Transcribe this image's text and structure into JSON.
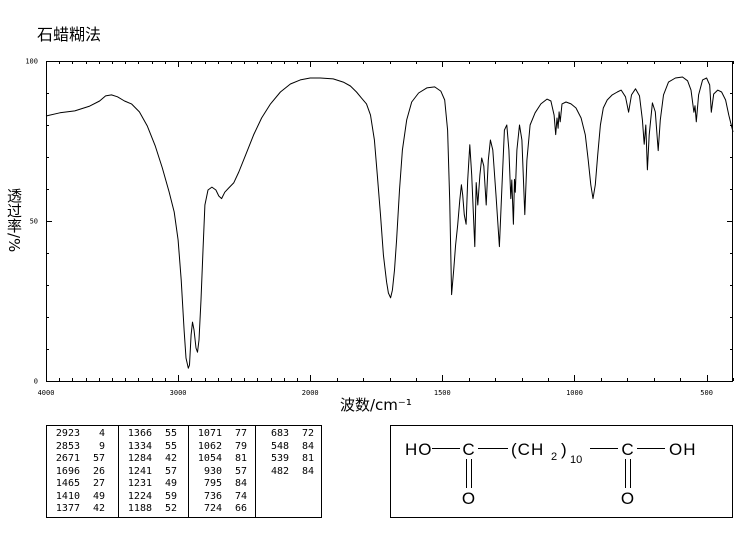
{
  "chart_data": {
    "type": "line",
    "title": "石蜡糊法",
    "xlabel": "波数/cm⁻¹",
    "ylabel": "透过率/%",
    "xlim": [
      4000,
      400
    ],
    "ylim": [
      0,
      100
    ],
    "x_break": 2000,
    "xticks": [
      4000,
      3000,
      2000,
      1500,
      1000,
      500
    ],
    "yticks": [
      100,
      50,
      0
    ],
    "grid": false,
    "series": [
      {
        "points": [
          [
            4000,
            82.8
          ],
          [
            3895,
            83.8
          ],
          [
            3782,
            84.4
          ],
          [
            3669,
            85.9
          ],
          [
            3594,
            87.5
          ],
          [
            3549,
            89.1
          ],
          [
            3504,
            89.4
          ],
          [
            3459,
            88.8
          ],
          [
            3406,
            87.5
          ],
          [
            3353,
            86.6
          ],
          [
            3293,
            84.1
          ],
          [
            3233,
            79.7
          ],
          [
            3173,
            73.4
          ],
          [
            3120,
            66.6
          ],
          [
            3068,
            59.1
          ],
          [
            3030,
            52.8
          ],
          [
            3000,
            44.1
          ],
          [
            2977,
            31.6
          ],
          [
            2955,
            15.9
          ],
          [
            2940,
            7.2
          ],
          [
            2923,
            4.0
          ],
          [
            2914,
            5.0
          ],
          [
            2902,
            14.4
          ],
          [
            2891,
            18.4
          ],
          [
            2880,
            16.0
          ],
          [
            2865,
            10.3
          ],
          [
            2853,
            9.0
          ],
          [
            2842,
            12.8
          ],
          [
            2827,
            25.3
          ],
          [
            2812,
            40.9
          ],
          [
            2797,
            55.0
          ],
          [
            2774,
            59.7
          ],
          [
            2744,
            60.6
          ],
          [
            2714,
            59.7
          ],
          [
            2692,
            57.8
          ],
          [
            2671,
            57.0
          ],
          [
            2647,
            59.0
          ],
          [
            2617,
            60.3
          ],
          [
            2579,
            61.9
          ],
          [
            2541,
            65.3
          ],
          [
            2489,
            70.6
          ],
          [
            2429,
            76.9
          ],
          [
            2368,
            82.2
          ],
          [
            2301,
            86.6
          ],
          [
            2226,
            90.3
          ],
          [
            2150,
            92.8
          ],
          [
            2075,
            94.1
          ],
          [
            2000,
            94.7
          ],
          [
            1962,
            94.7
          ],
          [
            1913,
            94.4
          ],
          [
            1875,
            93.4
          ],
          [
            1848,
            92.2
          ],
          [
            1825,
            90.3
          ],
          [
            1806,
            88.4
          ],
          [
            1787,
            86.6
          ],
          [
            1772,
            83.1
          ],
          [
            1757,
            75.3
          ],
          [
            1746,
            64.4
          ],
          [
            1734,
            51.9
          ],
          [
            1723,
            39.4
          ],
          [
            1711,
            30.9
          ],
          [
            1704,
            27.5
          ],
          [
            1696,
            26.0
          ],
          [
            1689,
            28.4
          ],
          [
            1681,
            34.7
          ],
          [
            1673,
            44.1
          ],
          [
            1662,
            59.7
          ],
          [
            1651,
            72.2
          ],
          [
            1635,
            81.6
          ],
          [
            1616,
            87.2
          ],
          [
            1590,
            90.0
          ],
          [
            1559,
            91.6
          ],
          [
            1529,
            91.9
          ],
          [
            1506,
            90.6
          ],
          [
            1491,
            87.8
          ],
          [
            1480,
            78.4
          ],
          [
            1472,
            56.6
          ],
          [
            1465,
            27.0
          ],
          [
            1457,
            34.7
          ],
          [
            1450,
            42.5
          ],
          [
            1442,
            48.8
          ],
          [
            1434,
            56.6
          ],
          [
            1428,
            61.3
          ],
          [
            1423,
            58.1
          ],
          [
            1417,
            51.9
          ],
          [
            1410,
            49.0
          ],
          [
            1404,
            62.8
          ],
          [
            1396,
            73.8
          ],
          [
            1389,
            64.4
          ],
          [
            1377,
            42.0
          ],
          [
            1372,
            62.0
          ],
          [
            1366,
            55.0
          ],
          [
            1358,
            64.4
          ],
          [
            1351,
            69.7
          ],
          [
            1343,
            67.2
          ],
          [
            1334,
            55.0
          ],
          [
            1326,
            69.0
          ],
          [
            1318,
            75.3
          ],
          [
            1309,
            72.2
          ],
          [
            1297,
            58.1
          ],
          [
            1284,
            42.0
          ],
          [
            1275,
            59.7
          ],
          [
            1265,
            78.4
          ],
          [
            1256,
            80.0
          ],
          [
            1248,
            72.2
          ],
          [
            1241,
            57.0
          ],
          [
            1237,
            62.8
          ],
          [
            1231,
            49.0
          ],
          [
            1227,
            63.0
          ],
          [
            1224,
            59.0
          ],
          [
            1218,
            72.2
          ],
          [
            1208,
            80.0
          ],
          [
            1199,
            75.3
          ],
          [
            1188,
            52.0
          ],
          [
            1180,
            69.0
          ],
          [
            1168,
            80.0
          ],
          [
            1149,
            83.8
          ],
          [
            1127,
            86.6
          ],
          [
            1104,
            88.1
          ],
          [
            1089,
            87.5
          ],
          [
            1077,
            83.1
          ],
          [
            1071,
            77.0
          ],
          [
            1066,
            82.2
          ],
          [
            1062,
            79.0
          ],
          [
            1058,
            84.1
          ],
          [
            1054,
            81.0
          ],
          [
            1047,
            86.6
          ],
          [
            1032,
            87.2
          ],
          [
            1013,
            86.6
          ],
          [
            994,
            85.3
          ],
          [
            975,
            82.2
          ],
          [
            959,
            76.9
          ],
          [
            948,
            69.1
          ],
          [
            938,
            61.3
          ],
          [
            930,
            57.0
          ],
          [
            921,
            61.3
          ],
          [
            912,
            70.6
          ],
          [
            902,
            80.0
          ],
          [
            891,
            85.3
          ],
          [
            876,
            87.8
          ],
          [
            857,
            89.4
          ],
          [
            838,
            90.3
          ],
          [
            823,
            90.9
          ],
          [
            807,
            88.8
          ],
          [
            795,
            84.0
          ],
          [
            784,
            89.4
          ],
          [
            769,
            91.3
          ],
          [
            754,
            89.1
          ],
          [
            743,
            81.6
          ],
          [
            736,
            74.0
          ],
          [
            730,
            80.0
          ],
          [
            724,
            66.0
          ],
          [
            717,
            76.9
          ],
          [
            705,
            86.9
          ],
          [
            694,
            84.1
          ],
          [
            683,
            72.0
          ],
          [
            675,
            81.6
          ],
          [
            663,
            89.4
          ],
          [
            644,
            93.4
          ],
          [
            618,
            94.7
          ],
          [
            591,
            95.0
          ],
          [
            572,
            93.8
          ],
          [
            559,
            90.9
          ],
          [
            548,
            84.0
          ],
          [
            544,
            86.0
          ],
          [
            539,
            81.0
          ],
          [
            530,
            89.4
          ],
          [
            515,
            94.1
          ],
          [
            500,
            94.7
          ],
          [
            488,
            92.5
          ],
          [
            482,
            84.0
          ],
          [
            473,
            89.7
          ],
          [
            458,
            90.9
          ],
          [
            443,
            90.3
          ],
          [
            428,
            87.8
          ],
          [
            416,
            83.1
          ],
          [
            400,
            77.8
          ]
        ]
      }
    ],
    "peak_table": [
      [
        2923,
        4
      ],
      [
        2853,
        9
      ],
      [
        2671,
        57
      ],
      [
        1696,
        26
      ],
      [
        1465,
        27
      ],
      [
        1410,
        49
      ],
      [
        1377,
        42
      ],
      [
        1366,
        55
      ],
      [
        1334,
        55
      ],
      [
        1284,
        42
      ],
      [
        1241,
        57
      ],
      [
        1231,
        49
      ],
      [
        1224,
        59
      ],
      [
        1188,
        52
      ],
      [
        1071,
        77
      ],
      [
        1062,
        79
      ],
      [
        1054,
        81
      ],
      [
        930,
        57
      ],
      [
        795,
        84
      ],
      [
        736,
        74
      ],
      [
        724,
        66
      ],
      [
        683,
        72
      ],
      [
        548,
        84
      ],
      [
        539,
        81
      ],
      [
        482,
        84
      ]
    ]
  },
  "structure": {
    "left_group": "HO",
    "carbon_left": "C",
    "chain_open": "(CH",
    "chain_sub": "2",
    "chain_close": ")",
    "repeat": "10",
    "carbon_right": "C",
    "right_group": "OH",
    "oxygen_left": "O",
    "oxygen_right": "O"
  },
  "colors": {
    "line": "#000000",
    "frame": "#000000",
    "background": "#ffffff"
  }
}
